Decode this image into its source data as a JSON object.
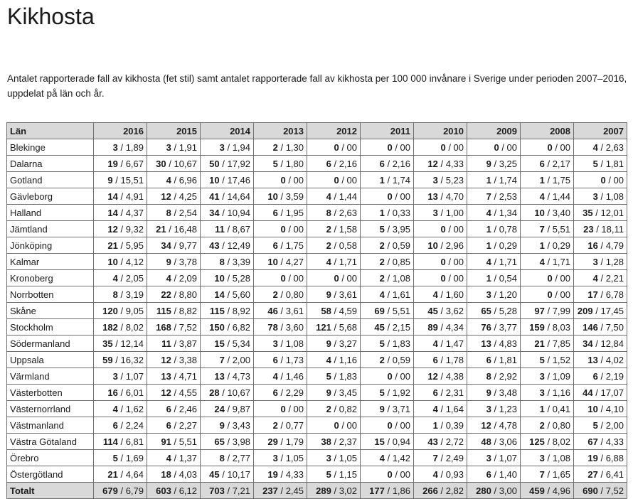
{
  "page": {
    "title": "Kikhosta",
    "caption": "Antalet rapporterade fall av kikhosta (fet stil) samt antalet rapporterade fall av kikhosta per 100 000 invånare i Sverige under perioden 2007–2016, uppdelat på län och år."
  },
  "colors": {
    "header_bg": "#d9d9d9",
    "total_row_bg": "#d9d9d9",
    "border": "#6e6e6e",
    "text": "#1a1a1a",
    "page_bg": "#ffffff"
  },
  "table": {
    "header": [
      "Län",
      "2016",
      "2015",
      "2014",
      "2013",
      "2012",
      "2011",
      "2010",
      "2009",
      "2008",
      "2007"
    ],
    "value_format": "cases / per 100000",
    "rows": [
      {
        "name": "Blekinge",
        "cells": [
          [
            "3",
            "1,89"
          ],
          [
            "3",
            "1,91"
          ],
          [
            "3",
            "1,94"
          ],
          [
            "2",
            "1,30"
          ],
          [
            "0",
            "00"
          ],
          [
            "0",
            "00"
          ],
          [
            "0",
            "00"
          ],
          [
            "0",
            "00"
          ],
          [
            "0",
            "00"
          ],
          [
            "4",
            "2,63"
          ]
        ]
      },
      {
        "name": "Dalarna",
        "cells": [
          [
            "19",
            "6,67"
          ],
          [
            "30",
            "10,67"
          ],
          [
            "50",
            "17,92"
          ],
          [
            "5",
            "1,80"
          ],
          [
            "6",
            "2,16"
          ],
          [
            "6",
            "2,16"
          ],
          [
            "12",
            "4,33"
          ],
          [
            "9",
            "3,25"
          ],
          [
            "6",
            "2,17"
          ],
          [
            "5",
            "1,81"
          ]
        ]
      },
      {
        "name": "Gotland",
        "cells": [
          [
            "9",
            "15,51"
          ],
          [
            "4",
            "6,96"
          ],
          [
            "10",
            "17,46"
          ],
          [
            "0",
            "00"
          ],
          [
            "0",
            "00"
          ],
          [
            "1",
            "1,74"
          ],
          [
            "3",
            "5,23"
          ],
          [
            "1",
            "1,74"
          ],
          [
            "1",
            "1,75"
          ],
          [
            "0",
            "00"
          ]
        ]
      },
      {
        "name": "Gävleborg",
        "cells": [
          [
            "14",
            "4,91"
          ],
          [
            "12",
            "4,25"
          ],
          [
            "41",
            "14,64"
          ],
          [
            "10",
            "3,59"
          ],
          [
            "4",
            "1,44"
          ],
          [
            "0",
            "00"
          ],
          [
            "13",
            "4,70"
          ],
          [
            "7",
            "2,53"
          ],
          [
            "4",
            "1,44"
          ],
          [
            "3",
            "1,08"
          ]
        ]
      },
      {
        "name": "Halland",
        "cells": [
          [
            "14",
            "4,37"
          ],
          [
            "8",
            "2,54"
          ],
          [
            "34",
            "10,94"
          ],
          [
            "6",
            "1,95"
          ],
          [
            "8",
            "2,63"
          ],
          [
            "1",
            "0,33"
          ],
          [
            "3",
            "1,00"
          ],
          [
            "4",
            "1,34"
          ],
          [
            "10",
            "3,40"
          ],
          [
            "35",
            "12,01"
          ]
        ]
      },
      {
        "name": "Jämtland",
        "cells": [
          [
            "12",
            "9,32"
          ],
          [
            "21",
            "16,48"
          ],
          [
            "11",
            "8,67"
          ],
          [
            "0",
            "00"
          ],
          [
            "2",
            "1,58"
          ],
          [
            "5",
            "3,95"
          ],
          [
            "0",
            "00"
          ],
          [
            "1",
            "0,78"
          ],
          [
            "7",
            "5,51"
          ],
          [
            "23",
            "18,11"
          ]
        ]
      },
      {
        "name": "Jönköping",
        "cells": [
          [
            "21",
            "5,95"
          ],
          [
            "34",
            "9,77"
          ],
          [
            "43",
            "12,49"
          ],
          [
            "6",
            "1,75"
          ],
          [
            "2",
            "0,58"
          ],
          [
            "2",
            "0,59"
          ],
          [
            "10",
            "2,96"
          ],
          [
            "1",
            "0,29"
          ],
          [
            "1",
            "0,29"
          ],
          [
            "16",
            "4,79"
          ]
        ]
      },
      {
        "name": "Kalmar",
        "cells": [
          [
            "10",
            "4,12"
          ],
          [
            "9",
            "3,78"
          ],
          [
            "8",
            "3,39"
          ],
          [
            "10",
            "4,27"
          ],
          [
            "4",
            "1,71"
          ],
          [
            "2",
            "0,85"
          ],
          [
            "0",
            "00"
          ],
          [
            "4",
            "1,71"
          ],
          [
            "4",
            "1,71"
          ],
          [
            "3",
            "1,28"
          ]
        ]
      },
      {
        "name": "Kronoberg",
        "cells": [
          [
            "4",
            "2,05"
          ],
          [
            "4",
            "2,09"
          ],
          [
            "10",
            "5,28"
          ],
          [
            "0",
            "00"
          ],
          [
            "0",
            "00"
          ],
          [
            "2",
            "1,08"
          ],
          [
            "0",
            "00"
          ],
          [
            "1",
            "0,54"
          ],
          [
            "0",
            "00"
          ],
          [
            "4",
            "2,21"
          ]
        ]
      },
      {
        "name": "Norrbotten",
        "cells": [
          [
            "8",
            "3,19"
          ],
          [
            "22",
            "8,80"
          ],
          [
            "14",
            "5,60"
          ],
          [
            "2",
            "0,80"
          ],
          [
            "9",
            "3,61"
          ],
          [
            "4",
            "1,61"
          ],
          [
            "4",
            "1,60"
          ],
          [
            "3",
            "1,20"
          ],
          [
            "0",
            "00"
          ],
          [
            "17",
            "6,78"
          ]
        ]
      },
      {
        "name": "Skåne",
        "cells": [
          [
            "120",
            "9,05"
          ],
          [
            "115",
            "8,82"
          ],
          [
            "115",
            "8,92"
          ],
          [
            "46",
            "3,61"
          ],
          [
            "58",
            "4,59"
          ],
          [
            "69",
            "5,51"
          ],
          [
            "45",
            "3,62"
          ],
          [
            "65",
            "5,28"
          ],
          [
            "97",
            "7,99"
          ],
          [
            "209",
            "17,45"
          ]
        ]
      },
      {
        "name": "Stockholm",
        "cells": [
          [
            "182",
            "8,02"
          ],
          [
            "168",
            "7,52"
          ],
          [
            "150",
            "6,82"
          ],
          [
            "78",
            "3,60"
          ],
          [
            "121",
            "5,68"
          ],
          [
            "45",
            "2,15"
          ],
          [
            "89",
            "4,34"
          ],
          [
            "76",
            "3,77"
          ],
          [
            "159",
            "8,03"
          ],
          [
            "146",
            "7,50"
          ]
        ]
      },
      {
        "name": "Södermanland",
        "cells": [
          [
            "35",
            "12,14"
          ],
          [
            "11",
            "3,87"
          ],
          [
            "15",
            "5,34"
          ],
          [
            "3",
            "1,08"
          ],
          [
            "9",
            "3,27"
          ],
          [
            "5",
            "1,83"
          ],
          [
            "4",
            "1,47"
          ],
          [
            "13",
            "4,83"
          ],
          [
            "21",
            "7,85"
          ],
          [
            "34",
            "12,84"
          ]
        ]
      },
      {
        "name": "Uppsala",
        "cells": [
          [
            "59",
            "16,32"
          ],
          [
            "12",
            "3,38"
          ],
          [
            "7",
            "2,00"
          ],
          [
            "6",
            "1,73"
          ],
          [
            "4",
            "1,16"
          ],
          [
            "2",
            "0,59"
          ],
          [
            "6",
            "1,78"
          ],
          [
            "6",
            "1,81"
          ],
          [
            "5",
            "1,52"
          ],
          [
            "13",
            "4,02"
          ]
        ]
      },
      {
        "name": "Värmland",
        "cells": [
          [
            "3",
            "1,07"
          ],
          [
            "13",
            "4,71"
          ],
          [
            "13",
            "4,73"
          ],
          [
            "4",
            "1,46"
          ],
          [
            "5",
            "1,83"
          ],
          [
            "0",
            "00"
          ],
          [
            "12",
            "4,38"
          ],
          [
            "8",
            "2,92"
          ],
          [
            "3",
            "1,09"
          ],
          [
            "6",
            "2,19"
          ]
        ]
      },
      {
        "name": "Västerbotten",
        "cells": [
          [
            "16",
            "6,01"
          ],
          [
            "12",
            "4,55"
          ],
          [
            "28",
            "10,67"
          ],
          [
            "6",
            "2,29"
          ],
          [
            "9",
            "3,45"
          ],
          [
            "5",
            "1,92"
          ],
          [
            "6",
            "2,31"
          ],
          [
            "9",
            "3,48"
          ],
          [
            "3",
            "1,16"
          ],
          [
            "44",
            "17,07"
          ]
        ]
      },
      {
        "name": "Västernorrland",
        "cells": [
          [
            "4",
            "1,62"
          ],
          [
            "6",
            "2,46"
          ],
          [
            "24",
            "9,87"
          ],
          [
            "0",
            "00"
          ],
          [
            "2",
            "0,82"
          ],
          [
            "9",
            "3,71"
          ],
          [
            "4",
            "1,64"
          ],
          [
            "3",
            "1,23"
          ],
          [
            "1",
            "0,41"
          ],
          [
            "10",
            "4,10"
          ]
        ]
      },
      {
        "name": "Västmanland",
        "cells": [
          [
            "6",
            "2,24"
          ],
          [
            "6",
            "2,27"
          ],
          [
            "9",
            "3,43"
          ],
          [
            "2",
            "0,77"
          ],
          [
            "0",
            "00"
          ],
          [
            "0",
            "00"
          ],
          [
            "1",
            "0,39"
          ],
          [
            "12",
            "4,78"
          ],
          [
            "2",
            "0,80"
          ],
          [
            "5",
            "2,00"
          ]
        ]
      },
      {
        "name": "Västra Götaland",
        "cells": [
          [
            "114",
            "6,81"
          ],
          [
            "91",
            "5,51"
          ],
          [
            "65",
            "3,98"
          ],
          [
            "29",
            "1,79"
          ],
          [
            "38",
            "2,37"
          ],
          [
            "15",
            "0,94"
          ],
          [
            "43",
            "2,72"
          ],
          [
            "48",
            "3,06"
          ],
          [
            "125",
            "8,02"
          ],
          [
            "67",
            "4,33"
          ]
        ]
      },
      {
        "name": "Örebro",
        "cells": [
          [
            "5",
            "1,69"
          ],
          [
            "4",
            "1,37"
          ],
          [
            "8",
            "2,77"
          ],
          [
            "3",
            "1,05"
          ],
          [
            "3",
            "1,05"
          ],
          [
            "4",
            "1,42"
          ],
          [
            "7",
            "2,49"
          ],
          [
            "3",
            "1,07"
          ],
          [
            "3",
            "1,08"
          ],
          [
            "19",
            "6,88"
          ]
        ]
      },
      {
        "name": "Östergötland",
        "cells": [
          [
            "21",
            "4,64"
          ],
          [
            "18",
            "4,03"
          ],
          [
            "45",
            "10,17"
          ],
          [
            "19",
            "4,33"
          ],
          [
            "5",
            "1,15"
          ],
          [
            "0",
            "00"
          ],
          [
            "4",
            "0,93"
          ],
          [
            "6",
            "1,40"
          ],
          [
            "7",
            "1,65"
          ],
          [
            "27",
            "6,41"
          ]
        ]
      }
    ],
    "total_row": {
      "name": "Totalt",
      "cells": [
        [
          "679",
          "6,79"
        ],
        [
          "603",
          "6,12"
        ],
        [
          "703",
          "7,21"
        ],
        [
          "237",
          "2,45"
        ],
        [
          "289",
          "3,02"
        ],
        [
          "177",
          "1,86"
        ],
        [
          "266",
          "2,82"
        ],
        [
          "280",
          "3,00"
        ],
        [
          "459",
          "4,96"
        ],
        [
          "690",
          "7,52"
        ]
      ]
    }
  }
}
